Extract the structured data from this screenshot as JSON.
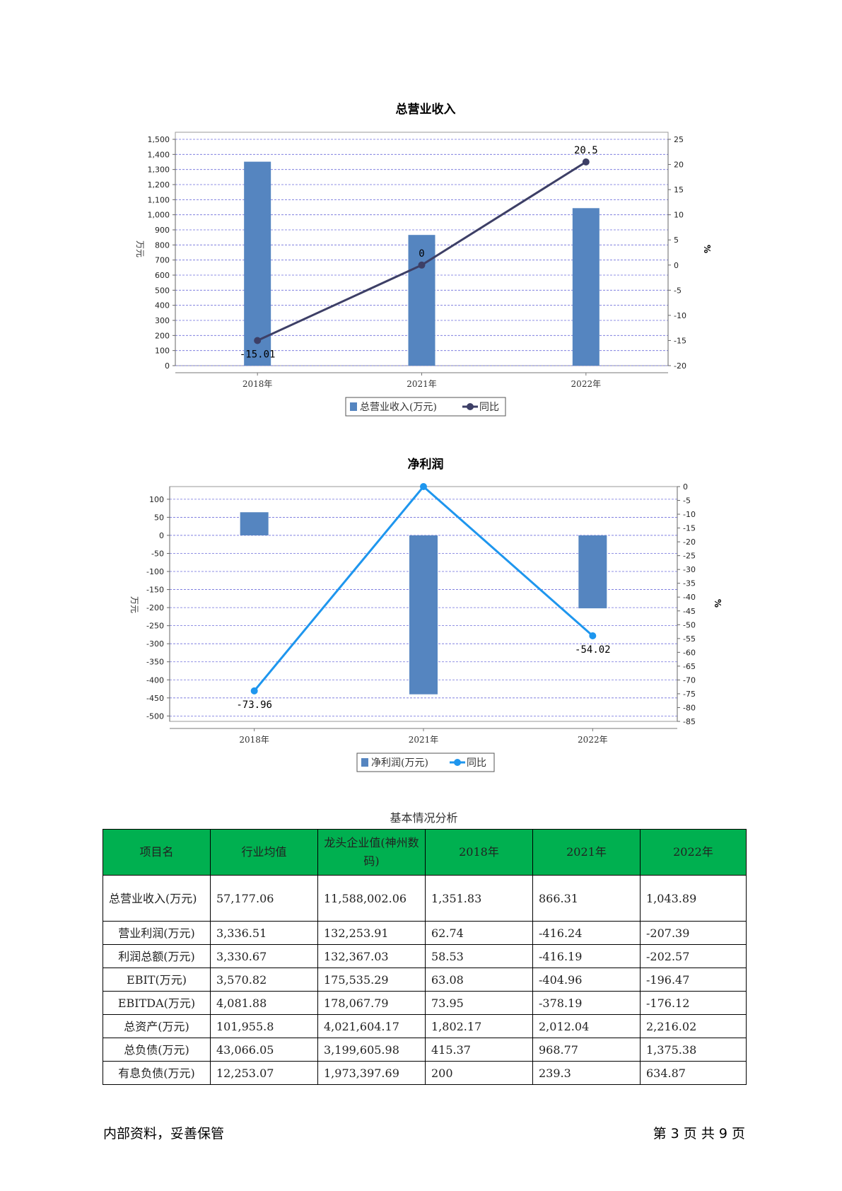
{
  "chart_data": [
    {
      "type": "bar",
      "title": "总营业收入",
      "categories": [
        "2018年",
        "2021年",
        "2022年"
      ],
      "series": [
        {
          "name": "总营业收入(万元)",
          "type": "bar",
          "axis": "left",
          "values": [
            1351.83,
            866.31,
            1043.89
          ],
          "color": "#5585c0"
        },
        {
          "name": "同比",
          "type": "line",
          "axis": "right",
          "values": [
            -15.01,
            0,
            20.5
          ],
          "labels": [
            "-15.01",
            "0",
            "20.5"
          ],
          "color": "#3d3f66"
        }
      ],
      "ylabel": "万元",
      "y2label": "%",
      "ylim": [
        0,
        1500
      ],
      "yticks": [
        0,
        100,
        200,
        300,
        400,
        500,
        600,
        700,
        800,
        900,
        1000,
        1100,
        1200,
        1300,
        1400,
        1500
      ],
      "ytick_labels": [
        "0",
        "100",
        "200",
        "300",
        "400",
        "500",
        "600",
        "700",
        "800",
        "900",
        "1,000",
        "1,100",
        "1,200",
        "1,300",
        "1,400",
        "1,500"
      ],
      "y2lim": [
        -20,
        25
      ],
      "y2ticks": [
        -20,
        -15,
        -10,
        -5,
        0,
        5,
        10,
        15,
        20,
        25
      ],
      "grid": true,
      "legend": "bottom"
    },
    {
      "type": "bar",
      "title": "净利润",
      "categories": [
        "2018年",
        "2021年",
        "2022年"
      ],
      "series": [
        {
          "name": "净利润(万元)",
          "type": "bar",
          "axis": "left",
          "values": [
            64,
            -440,
            -202
          ],
          "color": "#5585c0"
        },
        {
          "name": "同比",
          "type": "line",
          "axis": "right",
          "values": [
            -73.96,
            0,
            -54.02
          ],
          "labels": [
            "-73.96",
            "",
            "-54.02"
          ],
          "color": "#1e96ee"
        }
      ],
      "ylabel": "万元",
      "y2label": "%",
      "ylim": [
        -515,
        135
      ],
      "yticks": [
        -500,
        -450,
        -400,
        -350,
        -300,
        -250,
        -200,
        -150,
        -100,
        -50,
        0,
        50,
        100
      ],
      "y2lim": [
        -85,
        0
      ],
      "y2ticks": [
        -85,
        -80,
        -75,
        -70,
        -65,
        -60,
        -55,
        -50,
        -45,
        -40,
        -35,
        -30,
        -25,
        -20,
        -15,
        -10,
        -5,
        0
      ],
      "grid": true,
      "legend": "bottom"
    }
  ],
  "table": {
    "caption": "基本情况分析",
    "headers": [
      "项目名",
      "行业均值",
      "龙头企业值(神州数码)",
      "2018年",
      "2021年",
      "2022年"
    ],
    "rows": [
      [
        "总营业收入(万元)",
        "57,177.06",
        "11,588,002.06",
        "1,351.83",
        "866.31",
        "1,043.89"
      ],
      [
        "营业利润(万元)",
        "3,336.51",
        "132,253.91",
        "62.74",
        "-416.24",
        "-207.39"
      ],
      [
        "利润总额(万元)",
        "3,330.67",
        "132,367.03",
        "58.53",
        "-416.19",
        "-202.57"
      ],
      [
        "EBIT(万元)",
        "3,570.82",
        "175,535.29",
        "63.08",
        "-404.96",
        "-196.47"
      ],
      [
        "EBITDA(万元)",
        "4,081.88",
        "178,067.79",
        "73.95",
        "-378.19",
        "-176.12"
      ],
      [
        "总资产(万元)",
        "101,955.8",
        "4,021,604.17",
        "1,802.17",
        "2,012.04",
        "2,216.02"
      ],
      [
        "总负债(万元)",
        "43,066.05",
        "3,199,605.98",
        "415.37",
        "968.77",
        "1,375.38"
      ],
      [
        "有息负债(万元)",
        "12,253.07",
        "1,973,397.69",
        "200",
        "239.3",
        "634.87"
      ]
    ]
  },
  "footer": {
    "left": "内部资料，妥善保管",
    "right": "第 3 页  共 9 页"
  }
}
